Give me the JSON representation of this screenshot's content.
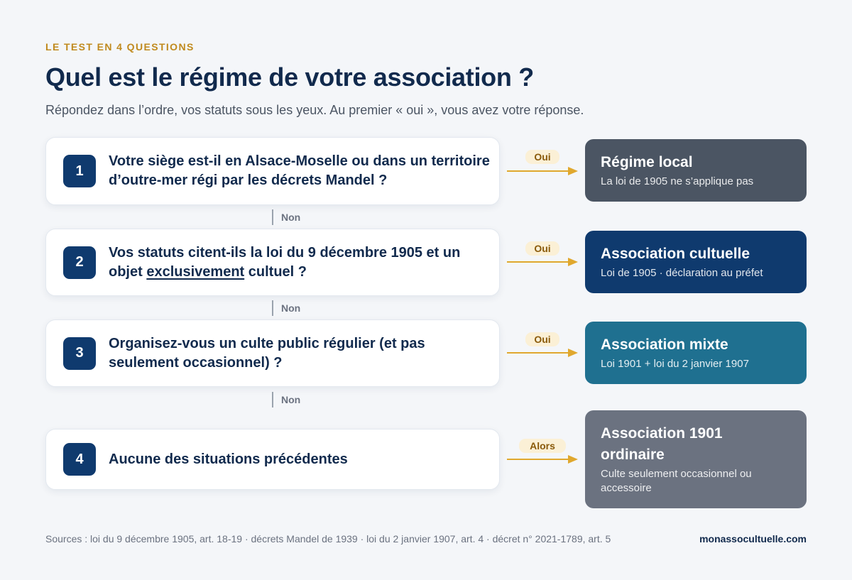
{
  "eyebrow": "LE TEST EN 4 QUESTIONS",
  "title": "Quel est le régime de votre association ?",
  "subtitle": "Répondez dans l’ordre, vos statuts sous les yeux. Au premier « oui », vous avez votre réponse.",
  "questions": [
    {
      "number": "1",
      "text": "Votre siège est-il en Alsace-Moselle ou dans un territoire d’outre-mer régi par les décrets Mandel ?"
    },
    {
      "number": "2",
      "text_before": "Vos statuts citent-ils la loi du 9 décembre 1905 et un objet ",
      "text_underlined": "exclusivement",
      "text_after": " cultuel ?"
    },
    {
      "number": "3",
      "text": "Organisez-vous un culte public régulier (et pas seulement occasionnel) ?"
    },
    {
      "number": "4",
      "text": "Aucune des situations précédentes"
    }
  ],
  "connector_label": "Non",
  "branch_labels": [
    "Oui",
    "Oui",
    "Oui",
    "Alors"
  ],
  "results": [
    {
      "title": "Régime local",
      "subtitle": "La loi de 1905 ne s’applique pas",
      "color": "#4b5563"
    },
    {
      "title": "Association cultuelle",
      "subtitle": "Loi de 1905 · déclaration au préfet",
      "color": "#0f3a6e"
    },
    {
      "title": "Association mixte",
      "subtitle": "Loi 1901 + loi du 2 janvier 1907",
      "color": "#1f7090"
    },
    {
      "title": "Association 1901 ordinaire",
      "subtitle": "Culte seulement occasionnel ou accessoire",
      "color": "#6b7280"
    }
  ],
  "arrow_color": "#e0a82e",
  "sources": "Sources : loi du 9 décembre 1905, art. 18-19 · décrets Mandel de 1939 · loi du 2 janvier 1907, art. 4 · décret n° 2021-1789, art. 5",
  "site": "monassocultuelle.com"
}
